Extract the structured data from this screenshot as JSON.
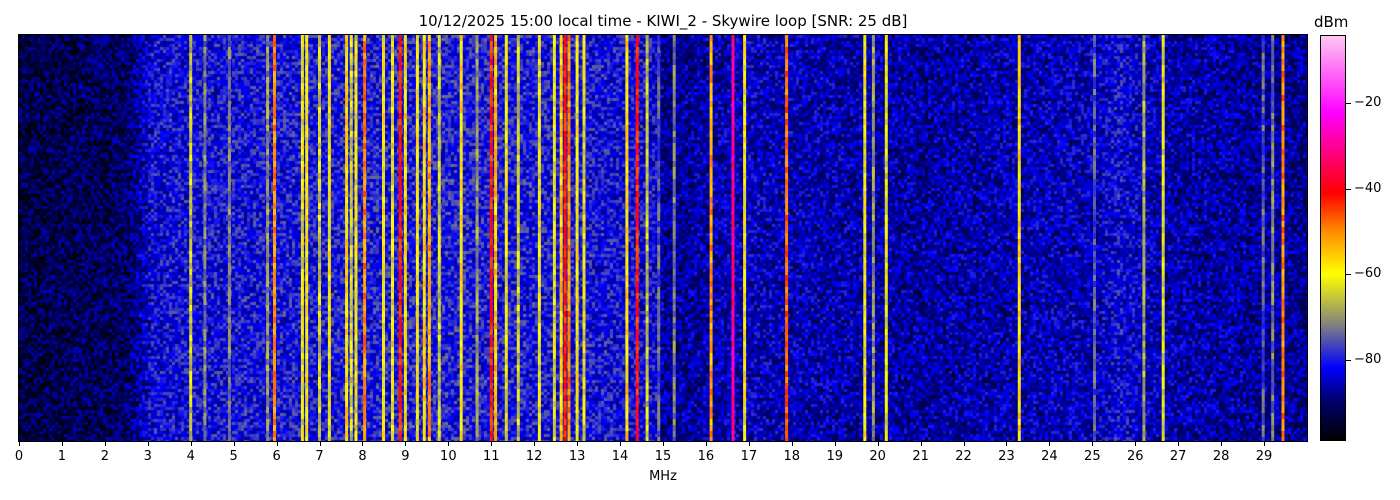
{
  "chart_data": {
    "type": "heatmap",
    "title": "10/12/2025 15:00 local time - KIWI_2 - Skywire loop [SNR: 25 dB]",
    "xlabel": "MHz",
    "xlim": [
      0,
      30
    ],
    "xticks": [
      "0",
      "1",
      "2",
      "3",
      "4",
      "5",
      "6",
      "7",
      "8",
      "9",
      "10",
      "11",
      "12",
      "13",
      "14",
      "15",
      "16",
      "17",
      "18",
      "19",
      "20",
      "21",
      "22",
      "23",
      "24",
      "25",
      "26",
      "27",
      "28",
      "29"
    ],
    "colorbar": {
      "label": "dBm",
      "range": [
        -99,
        -4
      ],
      "ticks": [
        -20,
        -40,
        -60,
        -80
      ],
      "tick_labels": [
        "−20",
        "−40",
        "−60",
        "−80"
      ],
      "colormap_stops": [
        {
          "dbm": -99,
          "color": "#000000"
        },
        {
          "dbm": -90,
          "color": "#00006a"
        },
        {
          "dbm": -82,
          "color": "#0000ff"
        },
        {
          "dbm": -72,
          "color": "#808080"
        },
        {
          "dbm": -60,
          "color": "#ffff00"
        },
        {
          "dbm": -50,
          "color": "#ff8c00"
        },
        {
          "dbm": -41,
          "color": "#ff0000"
        },
        {
          "dbm": -22,
          "color": "#ff00ff"
        },
        {
          "dbm": -4,
          "color": "#ffc8f0"
        }
      ]
    },
    "noise_floor": [
      {
        "mhz": 0,
        "dbm": -93
      },
      {
        "mhz": 2.5,
        "dbm": -91
      },
      {
        "mhz": 3.1,
        "dbm": -82
      },
      {
        "mhz": 10,
        "dbm": -80
      },
      {
        "mhz": 14.8,
        "dbm": -82
      },
      {
        "mhz": 15,
        "dbm": -88
      },
      {
        "mhz": 17,
        "dbm": -85
      },
      {
        "mhz": 21,
        "dbm": -87
      },
      {
        "mhz": 25,
        "dbm": -85
      },
      {
        "mhz": 25.6,
        "dbm": -82
      },
      {
        "mhz": 26.5,
        "dbm": -86
      },
      {
        "mhz": 30,
        "dbm": -88
      }
    ],
    "signals": [
      {
        "mhz": 4.0,
        "dbm": -65
      },
      {
        "mhz": 4.33,
        "dbm": -72
      },
      {
        "mhz": 4.9,
        "dbm": -72
      },
      {
        "mhz": 5.79,
        "dbm": -70
      },
      {
        "mhz": 5.95,
        "dbm": -50
      },
      {
        "mhz": 6.6,
        "dbm": -62
      },
      {
        "mhz": 6.7,
        "dbm": -60
      },
      {
        "mhz": 7.0,
        "dbm": -65
      },
      {
        "mhz": 7.23,
        "dbm": -60
      },
      {
        "mhz": 7.63,
        "dbm": -58
      },
      {
        "mhz": 7.74,
        "dbm": -65
      },
      {
        "mhz": 7.85,
        "dbm": -62
      },
      {
        "mhz": 8.05,
        "dbm": -50
      },
      {
        "mhz": 8.49,
        "dbm": -60
      },
      {
        "mhz": 8.7,
        "dbm": -62
      },
      {
        "mhz": 8.88,
        "dbm": -42
      },
      {
        "mhz": 9.0,
        "dbm": -58
      },
      {
        "mhz": 9.28,
        "dbm": -60
      },
      {
        "mhz": 9.44,
        "dbm": -58
      },
      {
        "mhz": 9.56,
        "dbm": -52
      },
      {
        "mhz": 9.79,
        "dbm": -65
      },
      {
        "mhz": 10.3,
        "dbm": -58
      },
      {
        "mhz": 10.67,
        "dbm": -70
      },
      {
        "mhz": 11.0,
        "dbm": -42
      },
      {
        "mhz": 11.1,
        "dbm": -55
      },
      {
        "mhz": 11.35,
        "dbm": -62
      },
      {
        "mhz": 11.63,
        "dbm": -65
      },
      {
        "mhz": 12.12,
        "dbm": -62
      },
      {
        "mhz": 12.47,
        "dbm": -62
      },
      {
        "mhz": 12.63,
        "dbm": -55
      },
      {
        "mhz": 12.72,
        "dbm": -42
      },
      {
        "mhz": 12.81,
        "dbm": -50
      },
      {
        "mhz": 13.0,
        "dbm": -60
      },
      {
        "mhz": 13.16,
        "dbm": -62
      },
      {
        "mhz": 14.16,
        "dbm": -58
      },
      {
        "mhz": 14.4,
        "dbm": -42
      },
      {
        "mhz": 14.63,
        "dbm": -65
      },
      {
        "mhz": 14.9,
        "dbm": -75
      },
      {
        "mhz": 15.26,
        "dbm": -72
      },
      {
        "mhz": 16.12,
        "dbm": -52
      },
      {
        "mhz": 16.63,
        "dbm": -30
      },
      {
        "mhz": 16.9,
        "dbm": -60
      },
      {
        "mhz": 17.88,
        "dbm": -48
      },
      {
        "mhz": 19.7,
        "dbm": -60
      },
      {
        "mhz": 19.9,
        "dbm": -70
      },
      {
        "mhz": 20.2,
        "dbm": -62
      },
      {
        "mhz": 23.3,
        "dbm": -58
      },
      {
        "mhz": 25.05,
        "dbm": -75
      },
      {
        "mhz": 26.2,
        "dbm": -68
      },
      {
        "mhz": 26.65,
        "dbm": -62
      },
      {
        "mhz": 28.98,
        "dbm": -75
      },
      {
        "mhz": 29.2,
        "dbm": -72
      },
      {
        "mhz": 29.44,
        "dbm": -50
      }
    ]
  }
}
